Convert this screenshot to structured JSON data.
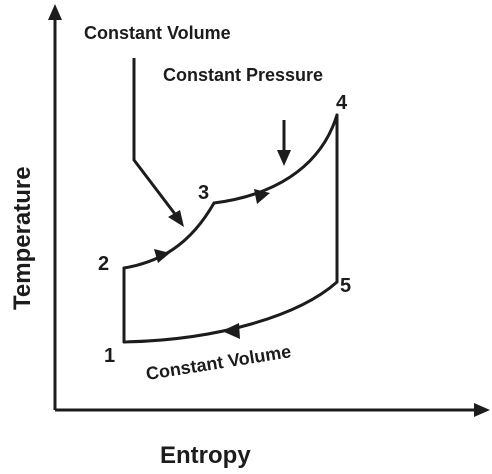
{
  "axes": {
    "x_label": "Entropy",
    "y_label": "Temperature"
  },
  "points": [
    "1",
    "2",
    "3",
    "4",
    "5"
  ],
  "process_labels": {
    "heat_addition_volume": "Constant Volume",
    "heat_addition_pressure": "Constant Pressure",
    "heat_rejection_volume": "Constant Volume"
  },
  "colors": {
    "ink": "#1c1c1c",
    "background": "#ffffff"
  }
}
